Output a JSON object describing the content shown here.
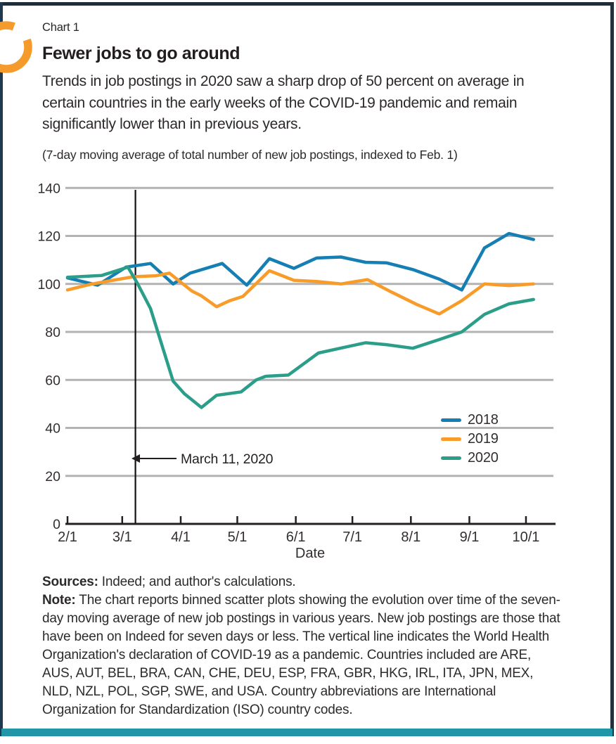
{
  "page": {
    "chart_label": "Chart 1",
    "title": "Fewer jobs to go around",
    "subtitle": "Trends in job postings in 2020 saw a sharp drop of 50 percent on average in certain countries in the early weeks of the COVID-19 pandemic and remain significantly lower than in previous years.",
    "axis_note": "(7-day moving average of total number of new job postings, indexed to Feb. 1)"
  },
  "chart_data": {
    "type": "line",
    "title": "Fewer jobs to go around",
    "xlabel": "Date",
    "ylabel": "",
    "ylim": [
      0,
      140
    ],
    "yticks": [
      0,
      20,
      40,
      60,
      80,
      100,
      120,
      140
    ],
    "xtick_labels": [
      "2/1",
      "3/1",
      "4/1",
      "5/1",
      "6/1",
      "7/1",
      "8/1",
      "9/1",
      "10/1"
    ],
    "xtick_days": [
      0,
      29,
      60,
      90,
      121,
      151,
      182,
      213,
      243
    ],
    "grid": "horizontal gray lines at y ticks",
    "legend_position": "right-middle",
    "annotation": {
      "label": "March 11, 2020",
      "day": 36,
      "meaning": "WHO declaration of COVID-19 as a pandemic (vertical line)"
    },
    "series": [
      {
        "name": "2018",
        "color": "#157fb3",
        "points": [
          [
            0,
            102.5
          ],
          [
            16,
            99.5
          ],
          [
            31,
            107
          ],
          [
            44,
            108.5
          ],
          [
            56,
            100
          ],
          [
            65,
            104.5
          ],
          [
            82,
            108.5
          ],
          [
            95,
            99.5
          ],
          [
            107,
            110.5
          ],
          [
            120,
            106.5
          ],
          [
            132,
            110.8
          ],
          [
            145,
            111.2
          ],
          [
            158,
            109
          ],
          [
            169,
            108.8
          ],
          [
            183,
            106
          ],
          [
            197,
            102
          ],
          [
            209,
            97.5
          ],
          [
            221,
            115
          ],
          [
            234,
            121
          ],
          [
            247,
            118.5
          ]
        ]
      },
      {
        "name": "2019",
        "color": "#f89b28",
        "points": [
          [
            0,
            97.5
          ],
          [
            12,
            99.8
          ],
          [
            24,
            101.5
          ],
          [
            35,
            103
          ],
          [
            47,
            103.4
          ],
          [
            54,
            104.5
          ],
          [
            66,
            97
          ],
          [
            71,
            95
          ],
          [
            79,
            90.5
          ],
          [
            86,
            93
          ],
          [
            93,
            94.8
          ],
          [
            107,
            105.5
          ],
          [
            120,
            101.5
          ],
          [
            132,
            101
          ],
          [
            145,
            100
          ],
          [
            159,
            101.8
          ],
          [
            172,
            96.5
          ],
          [
            185,
            91.5
          ],
          [
            197,
            87.5
          ],
          [
            209,
            93
          ],
          [
            221,
            100
          ],
          [
            234,
            99.3
          ],
          [
            247,
            100
          ]
        ]
      },
      {
        "name": "2020",
        "color": "#2b9e8a",
        "points": [
          [
            0,
            102.8
          ],
          [
            18,
            103.5
          ],
          [
            32,
            107
          ],
          [
            37,
            100.3
          ],
          [
            44,
            89.7
          ],
          [
            56,
            59.5
          ],
          [
            62,
            54.2
          ],
          [
            71,
            48.5
          ],
          [
            79,
            53.6
          ],
          [
            92,
            55
          ],
          [
            100,
            60
          ],
          [
            105,
            61.5
          ],
          [
            117,
            62
          ],
          [
            133,
            71.2
          ],
          [
            145,
            73.3
          ],
          [
            158,
            75.5
          ],
          [
            169,
            74.7
          ],
          [
            183,
            73.2
          ],
          [
            197,
            76.8
          ],
          [
            209,
            80
          ],
          [
            221,
            87.3
          ],
          [
            234,
            91.7
          ],
          [
            247,
            93.5
          ]
        ]
      }
    ]
  },
  "footer": {
    "sources_label": "Sources:",
    "sources_text": " Indeed; and author's calculations.",
    "note_label": "Note:",
    "note_text": " The chart reports binned scatter plots showing the evolution over time of the seven-day moving average of new job postings in various years. New job postings are those that have been on Indeed for seven days or less. The vertical line indicates the World Health Organization's declaration of COVID-19 as a pandemic. Countries included are ARE, AUS, AUT, BEL, BRA, CAN, CHE, DEU, ESP, FRA, GBR, HKG, IRL, ITA, JPN, MEX, NLD, NZL, POL, SGP, SWE, and USA. Country abbreviations are International Organization for Standardization (ISO) country codes."
  },
  "colors": {
    "accent_orange": "#f59b2b",
    "footer_bar": "#2196a7",
    "border": "#1c2e3d",
    "gridline": "#b3b3b3",
    "axis": "#231f20"
  }
}
